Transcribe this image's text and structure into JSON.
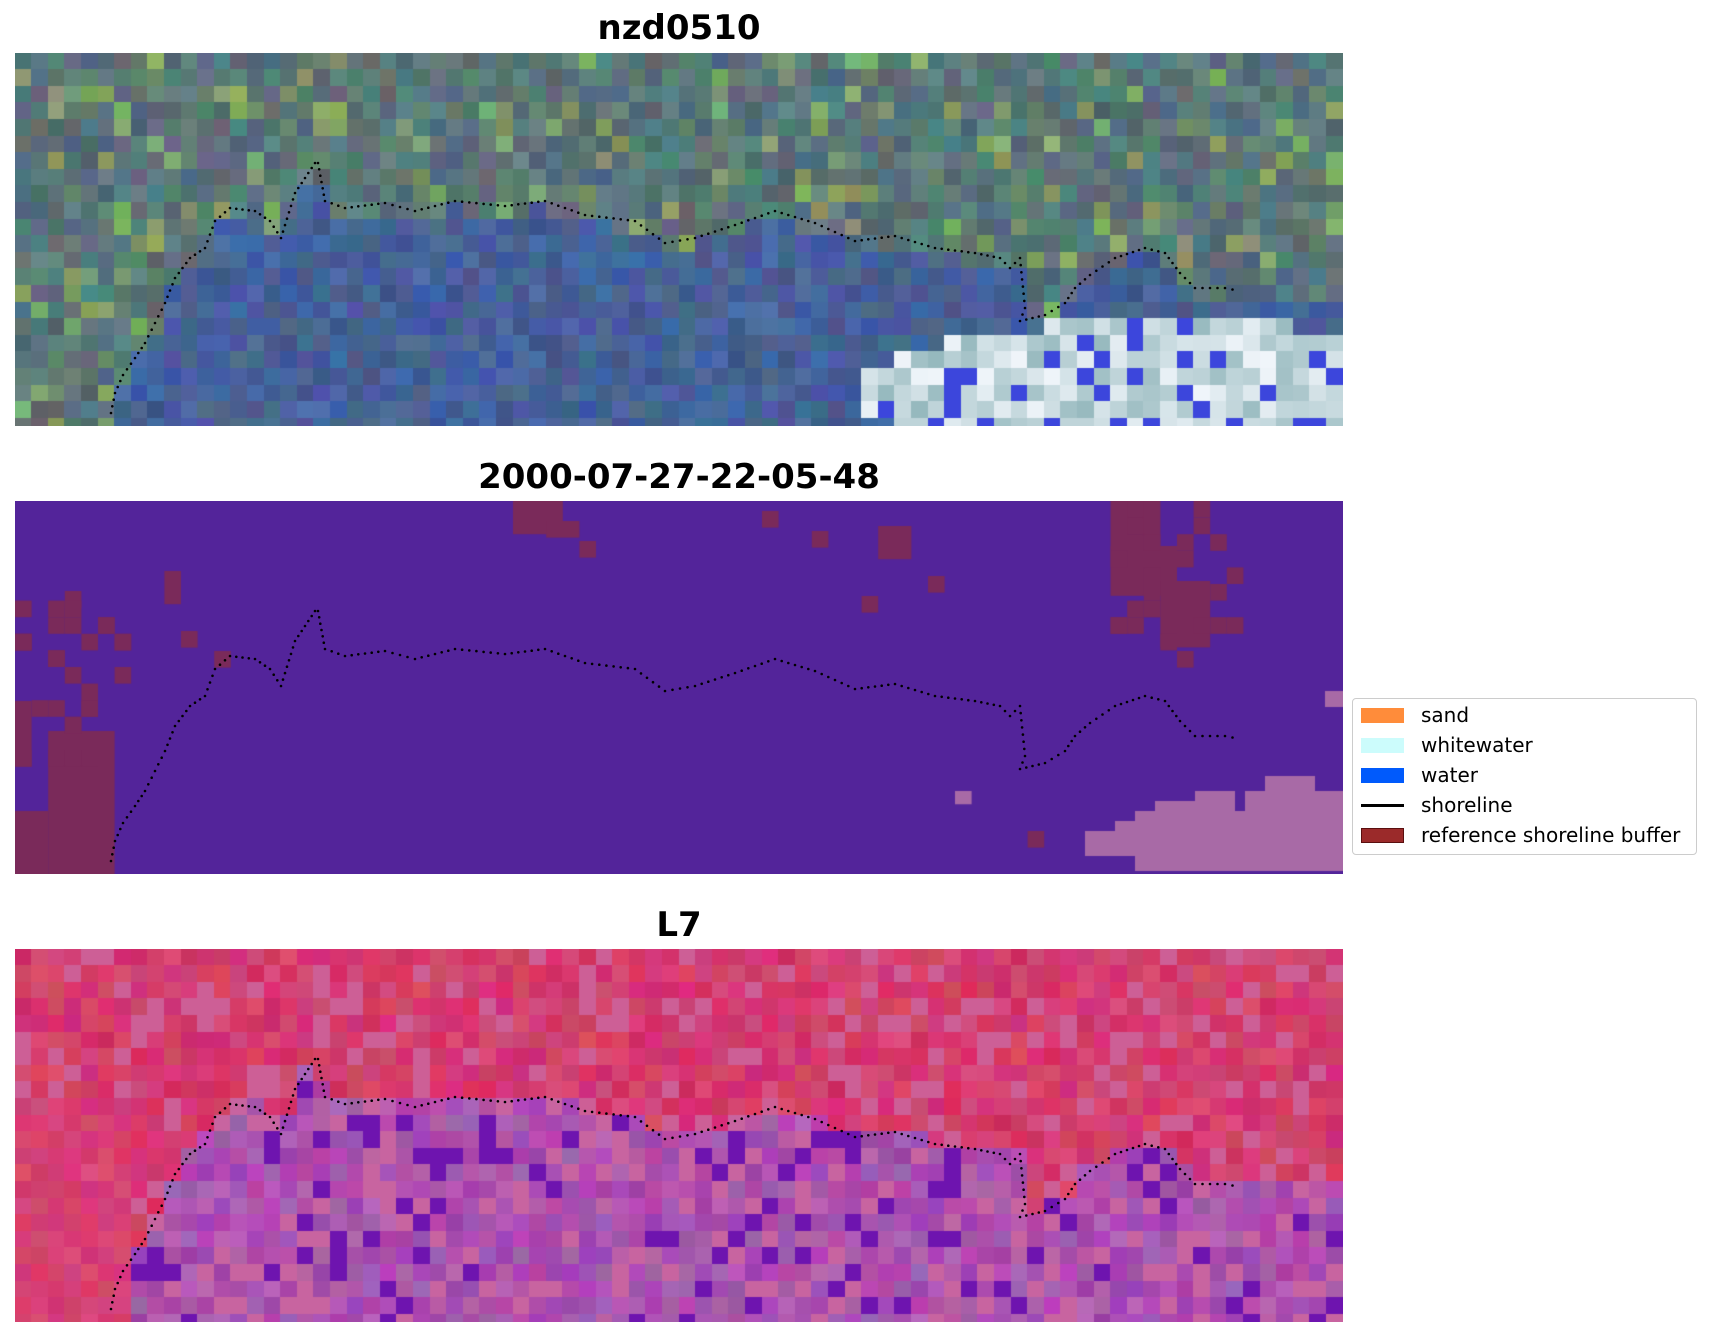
{
  "panels": [
    {
      "title": "nzd0510",
      "style": "rgb"
    },
    {
      "title": "2000-07-27-22-05-48",
      "style": "classification"
    },
    {
      "title": "L7",
      "style": "index"
    }
  ],
  "legend": {
    "items": [
      {
        "label": "sand",
        "kind": "patch",
        "color": "#ff8c3a"
      },
      {
        "label": "whitewater",
        "kind": "patch",
        "color": "#ccfcfc"
      },
      {
        "label": "water",
        "kind": "patch",
        "color": "#005afc"
      },
      {
        "label": "shoreline",
        "kind": "line",
        "color": "#000000"
      },
      {
        "label": "reference shoreline buffer",
        "kind": "patch",
        "color": "#9b2a2a"
      }
    ]
  },
  "colors": {
    "classification_background": "#53249a",
    "buffer_overlay": "#7a2a5a",
    "whitewater_overlay": "#a86aa6"
  }
}
